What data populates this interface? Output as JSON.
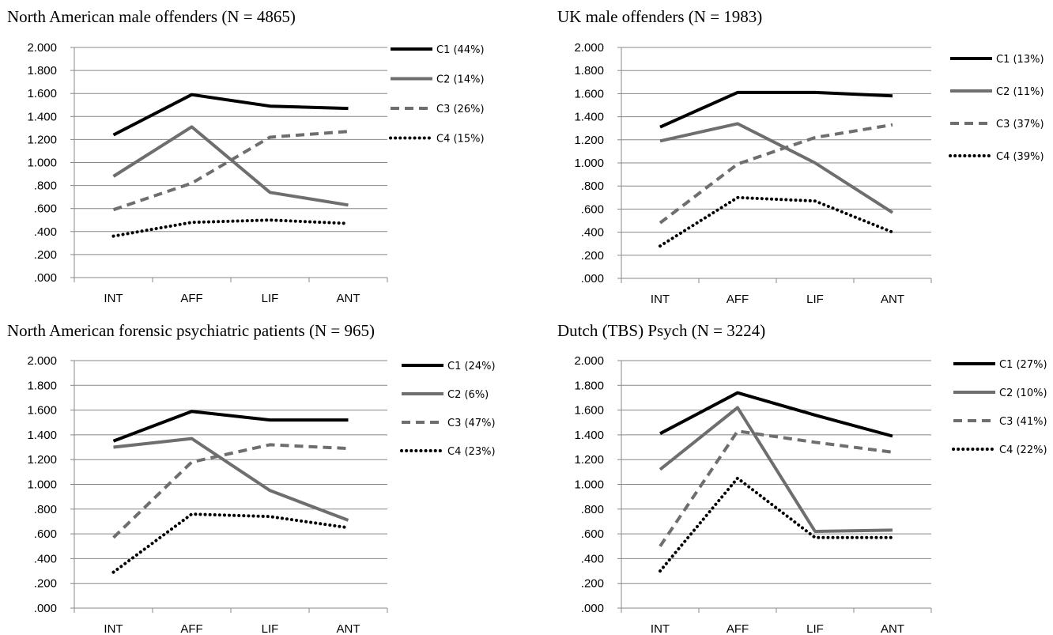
{
  "chart_data": [
    {
      "type": "line",
      "title": "North American male offenders (N = 4865)",
      "categories": [
        "INT",
        "AFF",
        "LIF",
        "ANT"
      ],
      "y_ticks": [
        ".000",
        ".200",
        ".400",
        ".600",
        ".800",
        "1.000",
        "1.200",
        "1.400",
        "1.600",
        "1.800",
        "2.000"
      ],
      "ylim": [
        0,
        2
      ],
      "grid": true,
      "legend_position": "right",
      "series": [
        {
          "name": "C1 (44%)",
          "values": [
            1.24,
            1.59,
            1.49,
            1.47
          ],
          "style": "solid-black"
        },
        {
          "name": "C2 (14%)",
          "values": [
            0.88,
            1.31,
            0.74,
            0.63
          ],
          "style": "solid-gray"
        },
        {
          "name": "C3 (26%)",
          "values": [
            0.59,
            0.82,
            1.22,
            1.27
          ],
          "style": "dashed-gray"
        },
        {
          "name": "C4 (15%)",
          "values": [
            0.36,
            0.48,
            0.5,
            0.47
          ],
          "style": "dotted-black"
        }
      ]
    },
    {
      "type": "line",
      "title": "UK male offenders (N = 1983)",
      "categories": [
        "INT",
        "AFF",
        "LIF",
        "ANT"
      ],
      "y_ticks": [
        ".000",
        ".200",
        ".400",
        ".600",
        ".800",
        "1.000",
        "1.200",
        "1.400",
        "1.600",
        "1.800",
        "2.000"
      ],
      "ylim": [
        0,
        2
      ],
      "grid": true,
      "legend_position": "right",
      "series": [
        {
          "name": "C1 (13%)",
          "values": [
            1.31,
            1.61,
            1.61,
            1.58
          ],
          "style": "solid-black"
        },
        {
          "name": "C2 (11%)",
          "values": [
            1.19,
            1.34,
            1.0,
            0.57
          ],
          "style": "solid-gray"
        },
        {
          "name": "C3 (37%)",
          "values": [
            0.48,
            0.99,
            1.22,
            1.33
          ],
          "style": "dashed-gray"
        },
        {
          "name": "C4 (39%)",
          "values": [
            0.28,
            0.7,
            0.67,
            0.4
          ],
          "style": "dotted-black"
        }
      ]
    },
    {
      "type": "line",
      "title": "North American forensic psychiatric patients (N = 965)",
      "categories": [
        "INT",
        "AFF",
        "LIF",
        "ANT"
      ],
      "y_ticks": [
        ".000",
        ".200",
        ".400",
        ".600",
        ".800",
        "1.000",
        "1.200",
        "1.400",
        "1.600",
        "1.800",
        "2.000"
      ],
      "ylim": [
        0,
        2
      ],
      "grid": true,
      "legend_position": "right",
      "series": [
        {
          "name": "C1 (24%)",
          "values": [
            1.35,
            1.59,
            1.52,
            1.52
          ],
          "style": "solid-black"
        },
        {
          "name": "C2 (6%)",
          "values": [
            1.3,
            1.37,
            0.95,
            0.71
          ],
          "style": "solid-gray"
        },
        {
          "name": "C3 (47%)",
          "values": [
            0.57,
            1.18,
            1.32,
            1.29
          ],
          "style": "dashed-gray"
        },
        {
          "name": "C4 (23%)",
          "values": [
            0.29,
            0.76,
            0.74,
            0.65
          ],
          "style": "dotted-black"
        }
      ]
    },
    {
      "type": "line",
      "title": "Dutch (TBS) Psych (N = 3224)",
      "categories": [
        "INT",
        "AFF",
        "LIF",
        "ANT"
      ],
      "y_ticks": [
        ".000",
        ".200",
        ".400",
        ".600",
        ".800",
        "1.000",
        "1.200",
        "1.400",
        "1.600",
        "1.800",
        "2.000"
      ],
      "ylim": [
        0,
        2
      ],
      "grid": true,
      "legend_position": "right",
      "series": [
        {
          "name": "C1 (27%)",
          "values": [
            1.41,
            1.74,
            1.56,
            1.39
          ],
          "style": "solid-black"
        },
        {
          "name": "C2 (10%)",
          "values": [
            1.12,
            1.62,
            0.62,
            0.63
          ],
          "style": "solid-gray"
        },
        {
          "name": "C3 (41%)",
          "values": [
            0.5,
            1.43,
            1.34,
            1.26
          ],
          "style": "dashed-gray"
        },
        {
          "name": "C4 (22%)",
          "values": [
            0.3,
            1.05,
            0.57,
            0.57
          ],
          "style": "dotted-black"
        }
      ]
    }
  ],
  "series_styles": {
    "solid-black": {
      "color": "#000000",
      "dash": "",
      "cap": "butt"
    },
    "solid-gray": {
      "color": "#6e6e6e",
      "dash": "",
      "cap": "butt"
    },
    "dashed-gray": {
      "color": "#6e6e6e",
      "dash": "11 7",
      "cap": "butt"
    },
    "dotted-black": {
      "color": "#000000",
      "dash": "0.1 6",
      "cap": "round"
    }
  }
}
